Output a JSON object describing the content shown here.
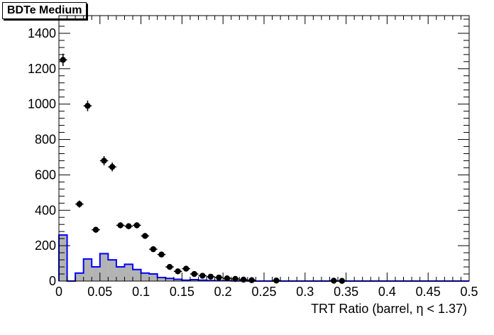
{
  "chart_data": {
    "type": "bar",
    "title": "BDTe Medium",
    "xlabel": "TRT Ratio (barrel,  η < 1.37)",
    "ylabel": "",
    "xlim": [
      0,
      0.5
    ],
    "ylim": [
      0,
      1500
    ],
    "x_ticks": [
      0,
      0.05,
      0.1,
      0.15,
      0.2,
      0.25,
      0.3,
      0.35,
      0.4,
      0.45,
      0.5
    ],
    "x_tick_labels": [
      "0",
      "0.05",
      "0.1",
      "0.15",
      "0.2",
      "0.25",
      "0.3",
      "0.35",
      "0.4",
      "0.45",
      "0.5"
    ],
    "y_ticks": [
      0,
      200,
      400,
      600,
      800,
      1000,
      1200,
      1400
    ],
    "y_tick_labels": [
      "0",
      "200",
      "400",
      "600",
      "800",
      "1000",
      "1200",
      "1400"
    ],
    "grid": false,
    "legend": "none",
    "bin_width": 0.01,
    "series": [
      {
        "kind": "histogram",
        "color": "#0000ff",
        "fill": "#b3b3b3",
        "bin_low": [
          0,
          0.01,
          0.02,
          0.03,
          0.04,
          0.05,
          0.06,
          0.07,
          0.08,
          0.09,
          0.1,
          0.11,
          0.12,
          0.13,
          0.14,
          0.15,
          0.16,
          0.17,
          0.18,
          0.19,
          0.2,
          0.21,
          0.22,
          0.23,
          0.24,
          0.25
        ],
        "values": [
          260,
          0,
          45,
          125,
          80,
          155,
          120,
          80,
          95,
          65,
          45,
          40,
          20,
          15,
          10,
          5,
          8,
          5,
          3,
          2,
          2,
          1,
          1,
          0,
          0,
          0
        ]
      },
      {
        "kind": "points",
        "color": "#000000",
        "x": [
          0.005,
          0.025,
          0.035,
          0.045,
          0.055,
          0.065,
          0.075,
          0.085,
          0.095,
          0.105,
          0.115,
          0.125,
          0.135,
          0.145,
          0.155,
          0.165,
          0.175,
          0.185,
          0.195,
          0.205,
          0.215,
          0.225,
          0.235,
          0.265,
          0.335,
          0.345
        ],
        "y": [
          1250,
          435,
          990,
          290,
          680,
          645,
          315,
          310,
          315,
          255,
          180,
          150,
          80,
          55,
          70,
          40,
          30,
          25,
          20,
          15,
          12,
          8,
          5,
          3,
          2,
          1
        ],
        "yerr": [
          35,
          20,
          30,
          17,
          26,
          25,
          17,
          17,
          17,
          16,
          13,
          12,
          9,
          7,
          8,
          6,
          5,
          5,
          4,
          4,
          3,
          3,
          2,
          2,
          1,
          1
        ]
      }
    ]
  }
}
